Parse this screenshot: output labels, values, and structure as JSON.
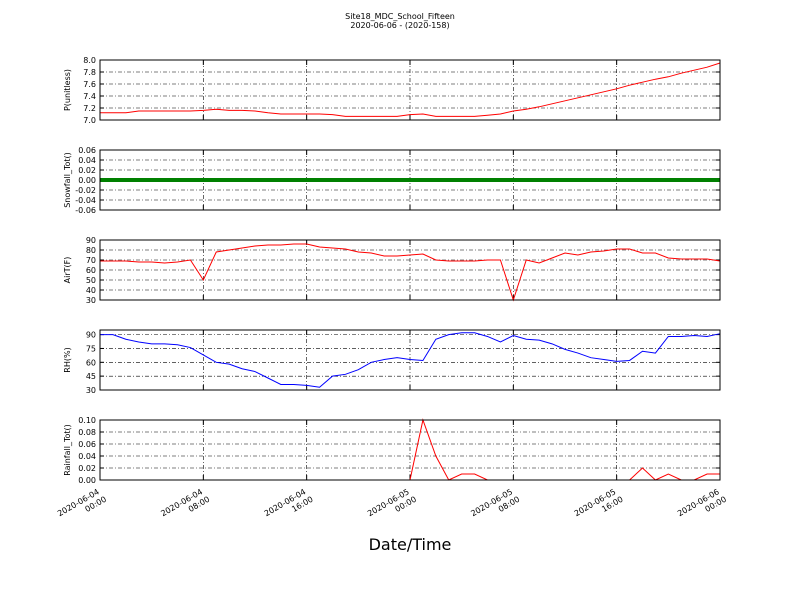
{
  "title": "Site18_MDC_School_Fifteen",
  "subtitle": "2020-06-06 - (2020-158)",
  "chart_data": [
    {
      "type": "line",
      "y_label": "P(unitless)",
      "color": "#ff0000",
      "x": [
        "2020-06-04 00:00",
        "2020-06-04 01:00",
        "2020-06-04 02:00",
        "2020-06-04 03:00",
        "2020-06-04 04:00",
        "2020-06-04 05:00",
        "2020-06-04 06:00",
        "2020-06-04 07:00",
        "2020-06-04 08:00",
        "2020-06-04 09:00",
        "2020-06-04 10:00",
        "2020-06-04 11:00",
        "2020-06-04 12:00",
        "2020-06-04 13:00",
        "2020-06-04 14:00",
        "2020-06-04 15:00",
        "2020-06-04 16:00",
        "2020-06-04 17:00",
        "2020-06-04 18:00",
        "2020-06-04 19:00",
        "2020-06-04 20:00",
        "2020-06-04 21:00",
        "2020-06-04 22:00",
        "2020-06-04 23:00",
        "2020-06-05 00:00",
        "2020-06-05 01:00",
        "2020-06-05 02:00",
        "2020-06-05 03:00",
        "2020-06-05 04:00",
        "2020-06-05 05:00",
        "2020-06-05 06:00",
        "2020-06-05 07:00",
        "2020-06-05 08:00",
        "2020-06-05 09:00",
        "2020-06-05 10:00",
        "2020-06-05 11:00",
        "2020-06-05 12:00",
        "2020-06-05 13:00",
        "2020-06-05 14:00",
        "2020-06-05 15:00",
        "2020-06-05 16:00",
        "2020-06-05 17:00",
        "2020-06-05 18:00",
        "2020-06-05 19:00",
        "2020-06-05 20:00",
        "2020-06-05 21:00",
        "2020-06-05 22:00",
        "2020-06-05 23:00",
        "2020-06-06 00:00"
      ],
      "values": [
        7.12,
        7.12,
        7.12,
        7.15,
        7.15,
        7.15,
        7.15,
        7.15,
        7.16,
        7.18,
        7.16,
        7.16,
        7.15,
        7.12,
        7.1,
        7.1,
        7.1,
        7.1,
        7.09,
        7.06,
        7.06,
        7.06,
        7.06,
        7.06,
        7.09,
        7.1,
        7.06,
        7.06,
        7.06,
        7.06,
        7.08,
        7.1,
        7.15,
        7.18,
        7.22,
        7.27,
        7.32,
        7.37,
        7.42,
        7.47,
        7.52,
        7.58,
        7.63,
        7.68,
        7.72,
        7.78,
        7.83,
        7.88,
        7.95
      ],
      "xlim": [
        "2020-06-04 00:00",
        "2020-06-06 00:00"
      ],
      "xticks": [
        "2020-06-04 00:00",
        "2020-06-04 08:00",
        "2020-06-04 16:00",
        "2020-06-05 00:00",
        "2020-06-05 08:00",
        "2020-06-05 16:00",
        "2020-06-06 00:00"
      ],
      "ylim": [
        7,
        8
      ],
      "yticks": [
        {
          "value": 7,
          "label": "7.0"
        },
        7.2,
        7.4,
        7.6,
        7.8,
        {
          "value": 8,
          "label": "8.0"
        }
      ],
      "grid": true
    },
    {
      "type": "line",
      "y_label": "Snowfall_Tot()",
      "color": "#008000",
      "x": [
        "2020-06-04 00:00",
        "2020-06-04 01:00",
        "2020-06-04 02:00",
        "2020-06-04 03:00",
        "2020-06-04 04:00",
        "2020-06-04 05:00",
        "2020-06-04 06:00",
        "2020-06-04 07:00",
        "2020-06-04 08:00",
        "2020-06-04 09:00",
        "2020-06-04 10:00",
        "2020-06-04 11:00",
        "2020-06-04 12:00",
        "2020-06-04 13:00",
        "2020-06-04 14:00",
        "2020-06-04 15:00",
        "2020-06-04 16:00",
        "2020-06-04 17:00",
        "2020-06-04 18:00",
        "2020-06-04 19:00",
        "2020-06-04 20:00",
        "2020-06-04 21:00",
        "2020-06-04 22:00",
        "2020-06-04 23:00",
        "2020-06-05 00:00",
        "2020-06-05 01:00",
        "2020-06-05 02:00",
        "2020-06-05 03:00",
        "2020-06-05 04:00",
        "2020-06-05 05:00",
        "2020-06-05 06:00",
        "2020-06-05 07:00",
        "2020-06-05 08:00",
        "2020-06-05 09:00",
        "2020-06-05 10:00",
        "2020-06-05 11:00",
        "2020-06-05 12:00",
        "2020-06-05 13:00",
        "2020-06-05 14:00",
        "2020-06-05 15:00",
        "2020-06-05 16:00",
        "2020-06-05 17:00",
        "2020-06-05 18:00",
        "2020-06-05 19:00",
        "2020-06-05 20:00",
        "2020-06-05 21:00",
        "2020-06-05 22:00",
        "2020-06-05 23:00",
        "2020-06-06 00:00"
      ],
      "values": [
        0,
        0,
        0,
        0,
        0,
        0,
        0,
        0,
        0,
        0,
        0,
        0,
        0,
        0,
        0,
        0,
        0,
        0,
        0,
        0,
        0,
        0,
        0,
        0,
        0,
        0,
        0,
        0,
        0,
        0,
        0,
        0,
        0,
        0,
        0,
        0,
        0,
        0,
        0,
        0,
        0,
        0,
        0,
        0,
        0,
        0,
        0,
        0,
        0
      ],
      "xlim": [
        "2020-06-04 00:00",
        "2020-06-06 00:00"
      ],
      "xticks": [
        "2020-06-04 00:00",
        "2020-06-04 08:00",
        "2020-06-04 16:00",
        "2020-06-05 00:00",
        "2020-06-05 08:00",
        "2020-06-05 16:00",
        "2020-06-06 00:00"
      ],
      "ylim": [
        -0.06,
        0.06
      ],
      "yticks": [
        -0.06,
        -0.04,
        -0.02,
        {
          "value": 0,
          "label": "0.00"
        },
        0.02,
        0.04,
        0.06
      ],
      "grid": true
    },
    {
      "type": "line",
      "y_label": "AirT(F)",
      "color": "#ff0000",
      "x": [
        "2020-06-04 00:00",
        "2020-06-04 01:00",
        "2020-06-04 02:00",
        "2020-06-04 03:00",
        "2020-06-04 04:00",
        "2020-06-04 05:00",
        "2020-06-04 06:00",
        "2020-06-04 07:00",
        "2020-06-04 08:00",
        "2020-06-04 09:00",
        "2020-06-04 10:00",
        "2020-06-04 11:00",
        "2020-06-04 12:00",
        "2020-06-04 13:00",
        "2020-06-04 14:00",
        "2020-06-04 15:00",
        "2020-06-04 16:00",
        "2020-06-04 17:00",
        "2020-06-04 18:00",
        "2020-06-04 19:00",
        "2020-06-04 20:00",
        "2020-06-04 21:00",
        "2020-06-04 22:00",
        "2020-06-04 23:00",
        "2020-06-05 00:00",
        "2020-06-05 01:00",
        "2020-06-05 02:00",
        "2020-06-05 03:00",
        "2020-06-05 04:00",
        "2020-06-05 05:00",
        "2020-06-05 06:00",
        "2020-06-05 07:00",
        "2020-06-05 08:00",
        "2020-06-05 09:00",
        "2020-06-05 10:00",
        "2020-06-05 11:00",
        "2020-06-05 12:00",
        "2020-06-05 13:00",
        "2020-06-05 14:00",
        "2020-06-05 15:00",
        "2020-06-05 16:00",
        "2020-06-05 17:00",
        "2020-06-05 18:00",
        "2020-06-05 19:00",
        "2020-06-05 20:00",
        "2020-06-05 21:00",
        "2020-06-05 22:00",
        "2020-06-05 23:00",
        "2020-06-06 00:00"
      ],
      "values": [
        69,
        69,
        69,
        68,
        68,
        67,
        68,
        70,
        50,
        78,
        80,
        82,
        84,
        85,
        85,
        86,
        86,
        83,
        82,
        81,
        78,
        77,
        74,
        74,
        75,
        76,
        70,
        69,
        69,
        69,
        70,
        70,
        30,
        70,
        67,
        72,
        77,
        75,
        78,
        79,
        81,
        81,
        77,
        77,
        72,
        71,
        71,
        71,
        69
      ],
      "xlim": [
        "2020-06-04 00:00",
        "2020-06-06 00:00"
      ],
      "xticks": [
        "2020-06-04 00:00",
        "2020-06-04 08:00",
        "2020-06-04 16:00",
        "2020-06-05 00:00",
        "2020-06-05 08:00",
        "2020-06-05 16:00",
        "2020-06-06 00:00"
      ],
      "ylim": [
        30,
        90
      ],
      "yticks": [
        30,
        40,
        50,
        60,
        70,
        80,
        90
      ],
      "grid": true
    },
    {
      "type": "line",
      "y_label": "RH(%)",
      "color": "#0000ff",
      "x": [
        "2020-06-04 00:00",
        "2020-06-04 01:00",
        "2020-06-04 02:00",
        "2020-06-04 03:00",
        "2020-06-04 04:00",
        "2020-06-04 05:00",
        "2020-06-04 06:00",
        "2020-06-04 07:00",
        "2020-06-04 08:00",
        "2020-06-04 09:00",
        "2020-06-04 10:00",
        "2020-06-04 11:00",
        "2020-06-04 12:00",
        "2020-06-04 13:00",
        "2020-06-04 14:00",
        "2020-06-04 15:00",
        "2020-06-04 16:00",
        "2020-06-04 17:00",
        "2020-06-04 18:00",
        "2020-06-04 19:00",
        "2020-06-04 20:00",
        "2020-06-04 21:00",
        "2020-06-04 22:00",
        "2020-06-04 23:00",
        "2020-06-05 00:00",
        "2020-06-05 01:00",
        "2020-06-05 02:00",
        "2020-06-05 03:00",
        "2020-06-05 04:00",
        "2020-06-05 05:00",
        "2020-06-05 06:00",
        "2020-06-05 07:00",
        "2020-06-05 08:00",
        "2020-06-05 09:00",
        "2020-06-05 10:00",
        "2020-06-05 11:00",
        "2020-06-05 12:00",
        "2020-06-05 13:00",
        "2020-06-05 14:00",
        "2020-06-05 15:00",
        "2020-06-05 16:00",
        "2020-06-05 17:00",
        "2020-06-05 18:00",
        "2020-06-05 19:00",
        "2020-06-05 20:00",
        "2020-06-05 21:00",
        "2020-06-05 22:00",
        "2020-06-05 23:00",
        "2020-06-06 00:00"
      ],
      "values": [
        90,
        90,
        85,
        82,
        80,
        80,
        79,
        76,
        68,
        60,
        58,
        53,
        50,
        43,
        36,
        36,
        35,
        33,
        45,
        47,
        52,
        60,
        63,
        65,
        63,
        62,
        85,
        90,
        92,
        92,
        88,
        82,
        89,
        85,
        84,
        80,
        74,
        70,
        65,
        63,
        61,
        62,
        72,
        70,
        88,
        88,
        89,
        88,
        91
      ],
      "xlim": [
        "2020-06-04 00:00",
        "2020-06-06 00:00"
      ],
      "xticks": [
        "2020-06-04 00:00",
        "2020-06-04 08:00",
        "2020-06-04 16:00",
        "2020-06-05 00:00",
        "2020-06-05 08:00",
        "2020-06-05 16:00",
        "2020-06-06 00:00"
      ],
      "ylim": [
        30,
        95
      ],
      "yticks": [
        30,
        45,
        60,
        75,
        90
      ],
      "grid": true
    },
    {
      "type": "line",
      "y_label": "Rainfall_Tot()",
      "x_label": "Date/Time",
      "color": "#ff0000",
      "x": [
        "2020-06-04 00:00",
        "2020-06-04 01:00",
        "2020-06-04 02:00",
        "2020-06-04 03:00",
        "2020-06-04 04:00",
        "2020-06-04 05:00",
        "2020-06-04 06:00",
        "2020-06-04 07:00",
        "2020-06-04 08:00",
        "2020-06-04 09:00",
        "2020-06-04 10:00",
        "2020-06-04 11:00",
        "2020-06-04 12:00",
        "2020-06-04 13:00",
        "2020-06-04 14:00",
        "2020-06-04 15:00",
        "2020-06-04 16:00",
        "2020-06-04 17:00",
        "2020-06-04 18:00",
        "2020-06-04 19:00",
        "2020-06-04 20:00",
        "2020-06-04 21:00",
        "2020-06-04 22:00",
        "2020-06-04 23:00",
        "2020-06-05 00:00",
        "2020-06-05 01:00",
        "2020-06-05 02:00",
        "2020-06-05 03:00",
        "2020-06-05 04:00",
        "2020-06-05 05:00",
        "2020-06-05 06:00",
        "2020-06-05 07:00",
        "2020-06-05 08:00",
        "2020-06-05 09:00",
        "2020-06-05 10:00",
        "2020-06-05 11:00",
        "2020-06-05 12:00",
        "2020-06-05 13:00",
        "2020-06-05 14:00",
        "2020-06-05 15:00",
        "2020-06-05 16:00",
        "2020-06-05 17:00",
        "2020-06-05 18:00",
        "2020-06-05 19:00",
        "2020-06-05 20:00",
        "2020-06-05 21:00",
        "2020-06-05 22:00",
        "2020-06-05 23:00",
        "2020-06-06 00:00"
      ],
      "values": [
        0,
        0,
        0,
        0,
        0,
        0,
        0,
        0,
        0,
        0,
        0,
        0,
        0,
        0,
        0,
        0,
        0,
        0,
        0,
        0,
        0,
        0,
        0,
        0,
        0,
        0.1,
        0.04,
        0,
        0.01,
        0.01,
        0,
        0,
        0,
        0,
        0,
        0,
        0,
        0,
        0,
        0,
        0,
        0,
        0.02,
        0,
        0.01,
        0,
        0,
        0.01,
        0.01
      ],
      "xlim": [
        "2020-06-04 00:00",
        "2020-06-06 00:00"
      ],
      "xticks": [
        "2020-06-04 00:00",
        "2020-06-04 08:00",
        "2020-06-04 16:00",
        "2020-06-05 00:00",
        "2020-06-05 08:00",
        "2020-06-05 16:00",
        "2020-06-06 00:00"
      ],
      "ylim": [
        0,
        0.1
      ],
      "yticks": [
        {
          "value": 0,
          "label": "0.00"
        },
        0.02,
        0.04,
        0.06,
        0.08,
        {
          "value": 0.1,
          "label": "0.10"
        }
      ],
      "grid": true
    }
  ]
}
